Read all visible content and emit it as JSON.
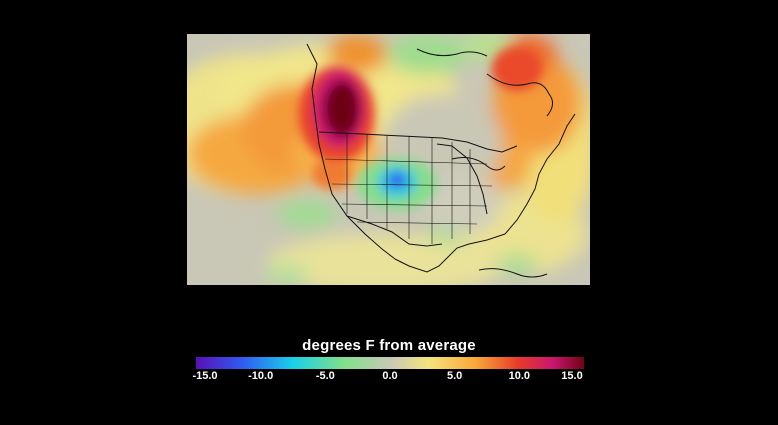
{
  "legend": {
    "title": "degrees F from average",
    "ticks": [
      "-15.0",
      "-10.0",
      "-5.0",
      "0.0",
      "5.0",
      "10.0",
      "15.0"
    ],
    "range": [
      -15,
      15
    ],
    "colors": [
      "#5a0fb8",
      "#2f5cf2",
      "#1ad0e8",
      "#7fe08a",
      "#c8c8b8",
      "#f3e47c",
      "#f8a83a",
      "#e83b2a",
      "#c8166f",
      "#6e0512"
    ]
  },
  "map": {
    "region": "North America",
    "anomaly_centers": [
      {
        "location": "Pacific Northwest",
        "value": 15
      },
      {
        "location": "Colorado",
        "value": -6
      },
      {
        "location": "Northeast / Maritimes",
        "value": 10
      }
    ]
  }
}
